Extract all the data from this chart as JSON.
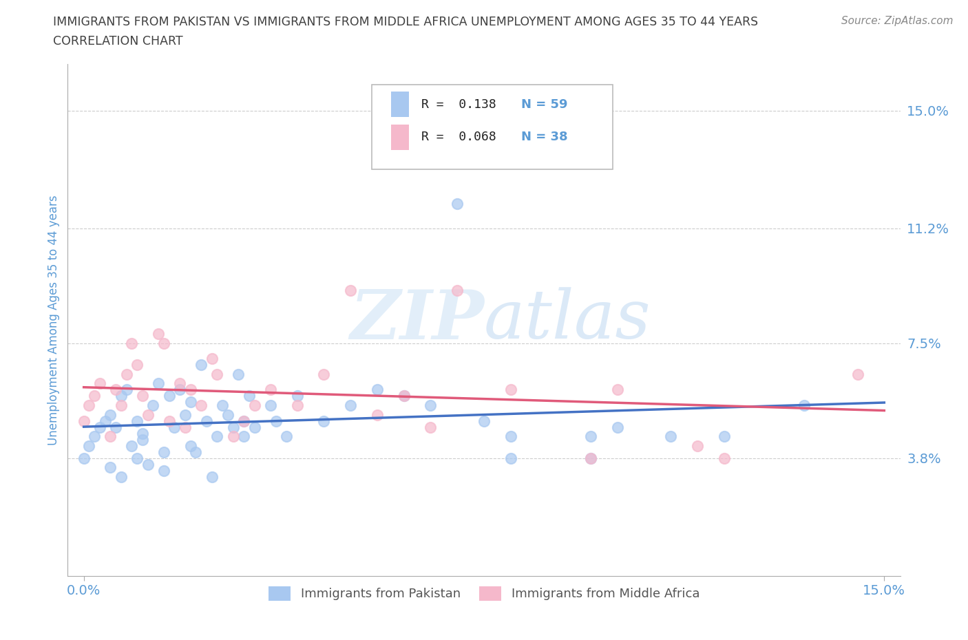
{
  "title_line1": "IMMIGRANTS FROM PAKISTAN VS IMMIGRANTS FROM MIDDLE AFRICA UNEMPLOYMENT AMONG AGES 35 TO 44 YEARS",
  "title_line2": "CORRELATION CHART",
  "source_text": "Source: ZipAtlas.com",
  "ylabel": "Unemployment Among Ages 35 to 44 years",
  "xticklabels": [
    "0.0%",
    "15.0%"
  ],
  "yticklabels": [
    "3.8%",
    "7.5%",
    "11.2%",
    "15.0%"
  ],
  "ytick_values": [
    3.8,
    7.5,
    11.2,
    15.0
  ],
  "xtick_values": [
    0.0,
    15.0
  ],
  "xlim": [
    -0.3,
    15.3
  ],
  "ylim": [
    0.0,
    16.5
  ],
  "watermark": "ZIPatlas",
  "legend_r1": "R =  0.138",
  "legend_n1": "N = 59",
  "legend_r2": "R =  0.068",
  "legend_n2": "N = 38",
  "color_pakistan": "#a8c8f0",
  "color_africa": "#f5b8cb",
  "trendline_color_pakistan": "#4472c4",
  "trendline_color_africa": "#e05a7a",
  "pakistan_x": [
    0.0,
    0.1,
    0.2,
    0.3,
    0.4,
    0.5,
    0.5,
    0.6,
    0.7,
    0.7,
    0.8,
    0.9,
    1.0,
    1.0,
    1.1,
    1.1,
    1.2,
    1.3,
    1.4,
    1.5,
    1.5,
    1.6,
    1.7,
    1.8,
    1.9,
    2.0,
    2.0,
    2.1,
    2.2,
    2.3,
    2.4,
    2.5,
    2.6,
    2.7,
    2.8,
    2.9,
    3.0,
    3.0,
    3.1,
    3.2,
    3.5,
    3.6,
    3.8,
    4.0,
    4.5,
    5.0,
    5.5,
    6.0,
    6.5,
    7.0,
    7.5,
    8.0,
    8.0,
    9.5,
    9.5,
    10.0,
    11.0,
    12.0,
    13.5
  ],
  "pakistan_y": [
    3.8,
    4.2,
    4.5,
    4.8,
    5.0,
    3.5,
    5.2,
    4.8,
    3.2,
    5.8,
    6.0,
    4.2,
    3.8,
    5.0,
    4.6,
    4.4,
    3.6,
    5.5,
    6.2,
    4.0,
    3.4,
    5.8,
    4.8,
    6.0,
    5.2,
    5.6,
    4.2,
    4.0,
    6.8,
    5.0,
    3.2,
    4.5,
    5.5,
    5.2,
    4.8,
    6.5,
    5.0,
    4.5,
    5.8,
    4.8,
    5.5,
    5.0,
    4.5,
    5.8,
    5.0,
    5.5,
    6.0,
    5.8,
    5.5,
    12.0,
    5.0,
    3.8,
    4.5,
    3.8,
    4.5,
    4.8,
    4.5,
    4.5,
    5.5
  ],
  "africa_x": [
    0.0,
    0.1,
    0.2,
    0.3,
    0.5,
    0.6,
    0.7,
    0.8,
    0.9,
    1.0,
    1.1,
    1.2,
    1.4,
    1.5,
    1.6,
    1.8,
    1.9,
    2.0,
    2.2,
    2.4,
    2.5,
    2.8,
    3.0,
    3.2,
    3.5,
    4.0,
    4.5,
    5.0,
    5.5,
    6.0,
    6.5,
    7.0,
    8.0,
    9.5,
    10.0,
    11.5,
    12.0,
    14.5
  ],
  "africa_y": [
    5.0,
    5.5,
    5.8,
    6.2,
    4.5,
    6.0,
    5.5,
    6.5,
    7.5,
    6.8,
    5.8,
    5.2,
    7.8,
    7.5,
    5.0,
    6.2,
    4.8,
    6.0,
    5.5,
    7.0,
    6.5,
    4.5,
    5.0,
    5.5,
    6.0,
    5.5,
    6.5,
    9.2,
    5.2,
    5.8,
    4.8,
    9.2,
    6.0,
    3.8,
    6.0,
    4.2,
    3.8,
    6.5
  ],
  "background_color": "#ffffff",
  "grid_color": "#cccccc",
  "title_color": "#404040",
  "axis_color": "#5b9bd5",
  "tick_label_color": "#5b9bd5",
  "legend_text_color": "#222222",
  "bottom_legend_label1": "Immigrants from Pakistan",
  "bottom_legend_label2": "Immigrants from Middle Africa"
}
